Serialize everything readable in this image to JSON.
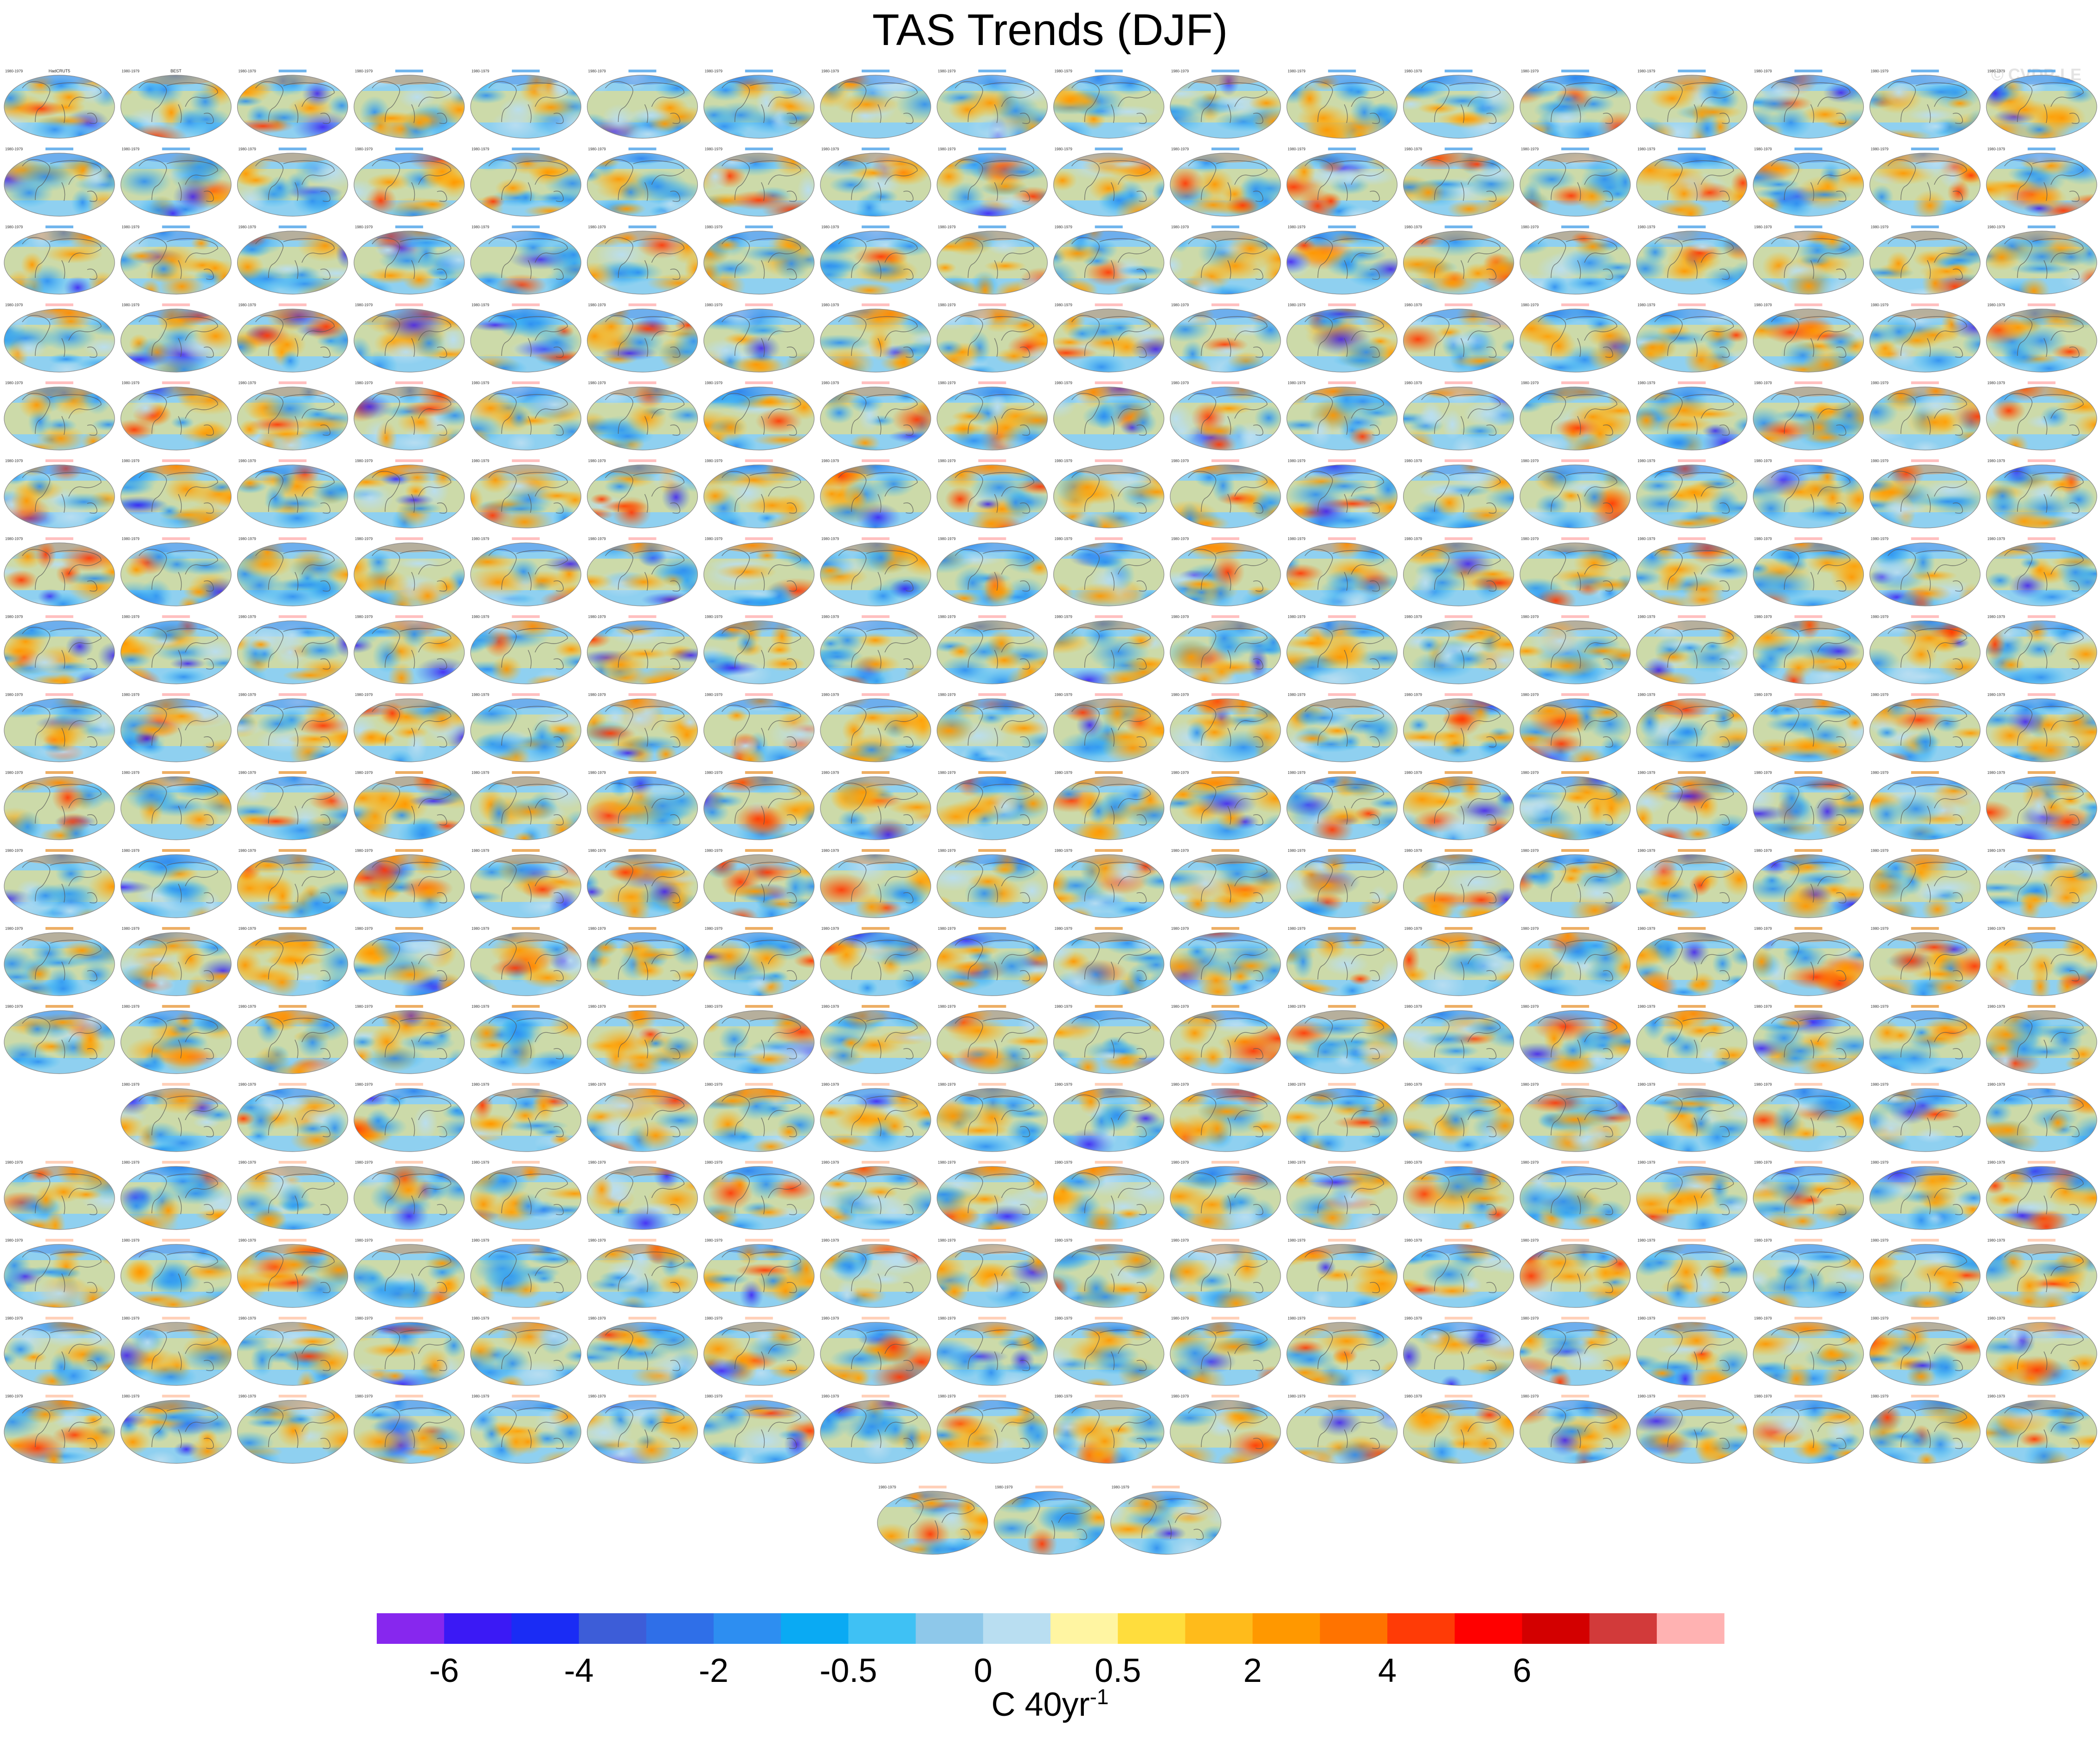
{
  "title": "TAS Trends (DJF)",
  "watermark": "© CVDP-LE",
  "colorbar": {
    "colors": [
      "#8727ee",
      "#3b19f5",
      "#1a2cf5",
      "#3d5dd8",
      "#2f6fe8",
      "#2d8ef1",
      "#0aaaf3",
      "#3fc1f4",
      "#8ec8ea",
      "#b9def1",
      "#fff5a2",
      "#ffdd3d",
      "#ffbb1b",
      "#ff9800",
      "#ff7300",
      "#ff3b06",
      "#ff0000",
      "#d30000",
      "#d23a3a",
      "#ffb2b2"
    ],
    "tick_labels": [
      "-6",
      "-4",
      "-2",
      "-0.5",
      "0",
      "0.5",
      "2",
      "4",
      "6"
    ],
    "units": "C 40yr",
    "units_exponent": "-1"
  },
  "panel_header": {
    "left": "1980-1979",
    "right_first": "r=0.21"
  },
  "chart_data": {
    "type": "heatmap",
    "title": "TAS Trends (DJF)",
    "layout": "small-multiples map grid",
    "projection": "Robinson (global)",
    "rows": [
      {
        "row": 1,
        "panels": 18,
        "first_labels": [
          "HadCRUT5",
          "BEST"
        ]
      },
      {
        "row": 2,
        "panels": 18
      },
      {
        "row": 3,
        "panels": 18
      },
      {
        "row": 4,
        "panels": 18
      },
      {
        "row": 5,
        "panels": 18
      },
      {
        "row": 6,
        "panels": 18
      },
      {
        "row": 7,
        "panels": 18
      },
      {
        "row": 8,
        "panels": 18
      },
      {
        "row": 9,
        "panels": 18
      },
      {
        "row": 10,
        "panels": 18
      },
      {
        "row": 11,
        "panels": 18
      },
      {
        "row": 12,
        "panels": 18
      },
      {
        "row": 13,
        "panels": 18
      },
      {
        "row": 14,
        "panels": 17
      },
      {
        "row": 15,
        "panels": 18
      },
      {
        "row": 16,
        "panels": 18
      },
      {
        "row": 17,
        "panels": 18
      },
      {
        "row": 18,
        "panels": 18
      },
      {
        "row": 19,
        "panels": 3
      }
    ],
    "colorbar_levels": [
      "-6",
      "-4",
      "-2",
      "-0.5",
      "0",
      "0.5",
      "2",
      "4",
      "6"
    ],
    "colorbar_units": "C 40yr-1"
  }
}
